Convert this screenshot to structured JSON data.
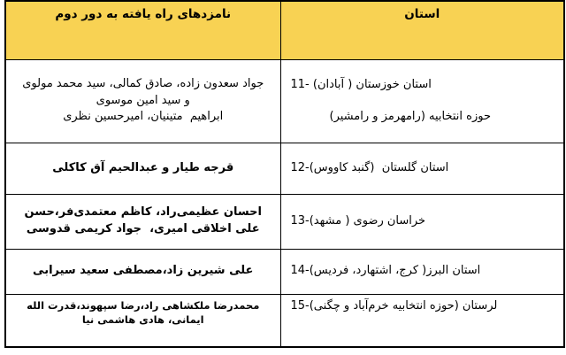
{
  "colors": {
    "header_bg": "#F8D253",
    "border": "#000000",
    "text": "#000000",
    "background": "#FFFFFF"
  },
  "header": {
    "candidates": "نامزدهای راه یافته به دور دوم",
    "province": "استان"
  },
  "rows": [
    {
      "candidates": [
        "جواد سعدون زاده، صادق کمالی، سید محمد مولوی و سید امین موسوی",
        "ابراهیم  متینیان، امیرحسین نظری"
      ],
      "province": [
        "11- استان خوزستان ( آبادان)",
        "حوزه انتخابیه (رامهرمز و رامشیر)"
      ]
    },
    {
      "candidates": [
        "قرجه طیار و عبدالحیم آق کاکلی"
      ],
      "province": [
        "12-استان گلستان  (گنبد کاووس)"
      ]
    },
    {
      "candidates": [
        "احسان عظیمی‌راد، کاظم معتمدی‌فر،حسن علی اخلاقی امیری،  جواد کریمی قدوسی"
      ],
      "province": [
        "13-خراسان رضوی ( مشهد)"
      ]
    },
    {
      "candidates": [
        "علی شیرین زاد،مصطفی سعید سیرابی"
      ],
      "province": [
        "14-استان البرز( کرج، اشتهارد، فردیس)"
      ]
    },
    {
      "candidates": [
        "محمدرضا ملکشاهی راد،رضا سپهوند،قدرت الله ایمانی، هادی هاشمی نیا"
      ],
      "province": [
        "15-لرستان (حوزه انتخابیه خرم‌آباد و چگنی)"
      ]
    }
  ]
}
